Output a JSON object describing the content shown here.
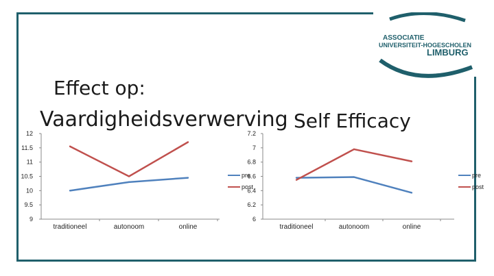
{
  "slide": {
    "title_line1": "Effect op:",
    "title_line2": "Vaardigheidsverwerving",
    "title_right": "Self Efficacy",
    "colors": {
      "frame": "#1f5f6b",
      "pre": "#4f81bd",
      "post": "#c0504d"
    }
  },
  "logo": {
    "line1": "ASSOCIATIE",
    "line2": "UNIVERSITEIT-HOGESCHOLEN",
    "line3": "LIMBURG"
  },
  "chart_data": [
    {
      "type": "line",
      "categories": [
        "traditioneel",
        "autonoom",
        "online"
      ],
      "series": [
        {
          "name": "pre",
          "values": [
            10.0,
            10.3,
            10.45
          ]
        },
        {
          "name": "post",
          "values": [
            11.55,
            10.5,
            11.7
          ]
        }
      ],
      "ylim": [
        9,
        12
      ],
      "yticks": [
        "9",
        "9.5",
        "10",
        "10.5",
        "11",
        "11.5",
        "12"
      ],
      "legend": "right",
      "grid": false
    },
    {
      "type": "line",
      "categories": [
        "traditioneel",
        "autonoom",
        "online"
      ],
      "series": [
        {
          "name": "pre",
          "values": [
            6.58,
            6.59,
            6.37
          ]
        },
        {
          "name": "post",
          "values": [
            6.55,
            6.98,
            6.81
          ]
        }
      ],
      "ylim": [
        6,
        7.2
      ],
      "yticks": [
        "6",
        "6.2",
        "6.4",
        "6.6",
        "6.8",
        "7",
        "7.2"
      ],
      "legend": "right",
      "grid": false
    }
  ]
}
